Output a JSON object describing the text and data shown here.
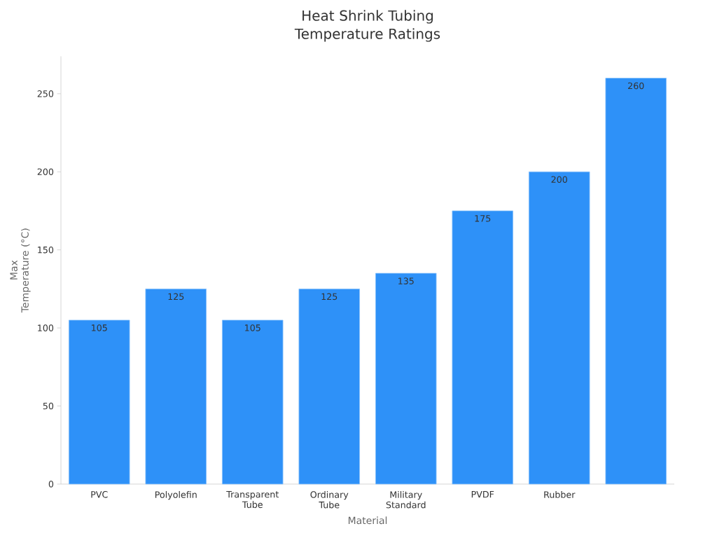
{
  "chart_data": {
    "type": "bar",
    "title": "Heat Shrink Tubing Temperature Ratings",
    "xlabel": "Material",
    "ylabel": "Max Temperature (°C)",
    "categories": [
      "PVC",
      "Polyolefin",
      "Transparent Tube",
      "Ordinary Tube",
      "Military Standard",
      "PVDF",
      "Rubber",
      null
    ],
    "values": [
      105,
      125,
      105,
      125,
      135,
      175,
      200,
      260
    ],
    "color": "#2e91f8",
    "ylim": [
      0,
      274
    ],
    "yticks": [
      0,
      50,
      100,
      150,
      200,
      250
    ],
    "data_labels": true
  }
}
